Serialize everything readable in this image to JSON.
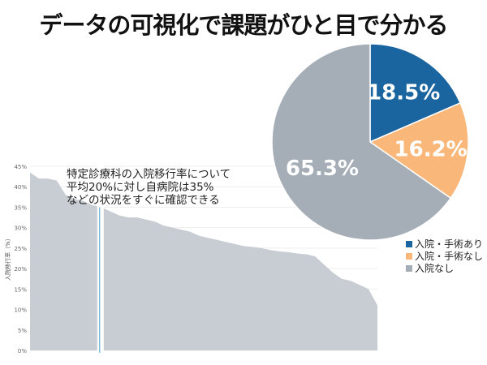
{
  "title": "データの可視化で課題がひと目で分かる",
  "chart_data": [
    {
      "type": "pie",
      "slices": [
        {
          "label": "入院・手術あり",
          "value": 18.5,
          "text": "18.5%",
          "color": "#1a64a0"
        },
        {
          "label": "入院・手術なし",
          "value": 16.2,
          "text": "16.2%",
          "color": "#f9b87a"
        },
        {
          "label": "入院なし",
          "value": 65.3,
          "text": "65.3%",
          "color": "#a5adb7"
        }
      ],
      "legend": "bottom-right"
    },
    {
      "type": "area",
      "ylabel": "入院移行率（%）",
      "ylim": [
        0,
        45
      ],
      "yticks": [
        "0%",
        "5%",
        "10%",
        "15%",
        "20%",
        "25%",
        "30%",
        "35%",
        "40%",
        "45%"
      ],
      "annotation": [
        "特定診療科の入院移行率について",
        "平均20%に対し自病院は35%",
        "などの状況をすぐに確認できる"
      ],
      "highlight_index": 8,
      "values": [
        43.5,
        42,
        42,
        41.5,
        38,
        37,
        36.5,
        35.5,
        35,
        34,
        33,
        32.5,
        32.5,
        32,
        31.5,
        30.5,
        30,
        29.5,
        29,
        28,
        27.5,
        27,
        26.5,
        26,
        25.5,
        25.3,
        25,
        24.5,
        24.2,
        24,
        23.7,
        23.5,
        23,
        21,
        19,
        17.5,
        17,
        16,
        15,
        11
      ],
      "color": "#c8cdd4"
    }
  ]
}
